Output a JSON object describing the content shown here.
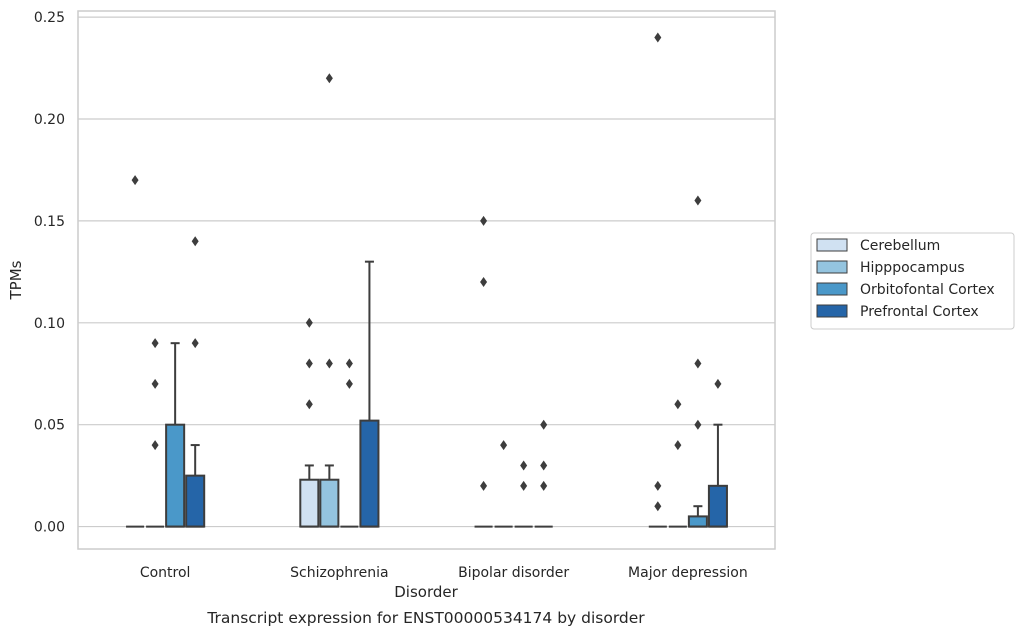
{
  "chart_data": {
    "type": "box",
    "xlabel": "Disorder",
    "ylabel": "TPMs",
    "caption": "Transcript expression for ENST00000534174 by disorder",
    "ylim": [
      -0.011,
      0.253
    ],
    "yticks": [
      0.0,
      0.05,
      0.1,
      0.15,
      0.2,
      0.25
    ],
    "ytick_labels": [
      "0.00",
      "0.05",
      "0.10",
      "0.15",
      "0.20",
      "0.25"
    ],
    "grid": true,
    "legend_position": "right",
    "categories": [
      "Control",
      "Schizophrenia",
      "Bipolar disorder",
      "Major depression"
    ],
    "series": [
      {
        "name": "Cerebellum",
        "color": "#d0e1f2",
        "boxes": [
          {
            "q1": 0,
            "median": 0,
            "q3": 0,
            "whisker_low": 0,
            "whisker_high": 0,
            "outliers": [
              0.17
            ]
          },
          {
            "q1": 0,
            "median": 0,
            "q3": 0.023,
            "whisker_low": 0,
            "whisker_high": 0.03,
            "outliers": [
              0.06,
              0.08,
              0.1
            ]
          },
          {
            "q1": 0,
            "median": 0,
            "q3": 0,
            "whisker_low": 0,
            "whisker_high": 0,
            "outliers": [
              0.02,
              0.12,
              0.15
            ]
          },
          {
            "q1": 0,
            "median": 0,
            "q3": 0,
            "whisker_low": 0,
            "whisker_high": 0,
            "outliers": [
              0.01,
              0.02,
              0.24
            ]
          }
        ]
      },
      {
        "name": "Hipppocampus",
        "color": "#94c4df",
        "boxes": [
          {
            "q1": 0,
            "median": 0,
            "q3": 0,
            "whisker_low": 0,
            "whisker_high": 0,
            "outliers": [
              0.04,
              0.07,
              0.09
            ]
          },
          {
            "q1": 0,
            "median": 0,
            "q3": 0.023,
            "whisker_low": 0,
            "whisker_high": 0.03,
            "outliers": [
              0.08,
              0.22
            ]
          },
          {
            "q1": 0,
            "median": 0,
            "q3": 0,
            "whisker_low": 0,
            "whisker_high": 0,
            "outliers": [
              0.04
            ]
          },
          {
            "q1": 0,
            "median": 0,
            "q3": 0,
            "whisker_low": 0,
            "whisker_high": 0,
            "outliers": [
              0.04,
              0.06
            ]
          }
        ]
      },
      {
        "name": "Orbitofontal Cortex",
        "color": "#4a98c9",
        "boxes": [
          {
            "q1": 0,
            "median": 0,
            "q3": 0.05,
            "whisker_low": 0,
            "whisker_high": 0.09,
            "outliers": []
          },
          {
            "q1": 0,
            "median": 0,
            "q3": 0,
            "whisker_low": 0,
            "whisker_high": 0,
            "outliers": [
              0.07,
              0.08
            ]
          },
          {
            "q1": 0,
            "median": 0,
            "q3": 0,
            "whisker_low": 0,
            "whisker_high": 0,
            "outliers": [
              0.02,
              0.03
            ]
          },
          {
            "q1": 0,
            "median": 0,
            "q3": 0.005,
            "whisker_low": 0,
            "whisker_high": 0.01,
            "outliers": [
              0.05,
              0.08,
              0.16
            ]
          }
        ]
      },
      {
        "name": "Prefrontal Cortex",
        "color": "#2565a8",
        "boxes": [
          {
            "q1": 0,
            "median": 0,
            "q3": 0.025,
            "whisker_low": 0,
            "whisker_high": 0.04,
            "outliers": [
              0.09,
              0.14
            ]
          },
          {
            "q1": 0,
            "median": 0,
            "q3": 0.052,
            "whisker_low": 0,
            "whisker_high": 0.13,
            "outliers": []
          },
          {
            "q1": 0,
            "median": 0,
            "q3": 0,
            "whisker_low": 0,
            "whisker_high": 0,
            "outliers": [
              0.02,
              0.03,
              0.05
            ]
          },
          {
            "q1": 0,
            "median": 0,
            "q3": 0.02,
            "whisker_low": 0,
            "whisker_high": 0.05,
            "outliers": [
              0.07
            ]
          }
        ]
      }
    ]
  }
}
